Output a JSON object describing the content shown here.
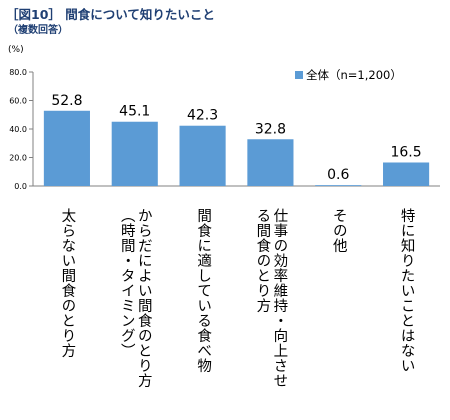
{
  "header": {
    "title": "［図10］ 間食について知りたいこと",
    "subtitle": "（複数回答）"
  },
  "colors": {
    "bar": "#5b9bd5",
    "axis": "#808080",
    "title": "#1f3f73"
  },
  "chart_data": {
    "type": "bar",
    "unit_label": "(%)",
    "categories": [
      "太らない間食のとり方",
      "からだによい間食のとり方\n（時間・タイミング）",
      "間食に適している食べ物",
      "仕事の効率維持・向上させ\nる間食のとり方",
      "その他",
      "特に知りたいことはない"
    ],
    "series": [
      {
        "name": "全体（n=1,200）",
        "values": [
          52.8,
          45.1,
          42.3,
          32.8,
          0.6,
          16.5
        ]
      }
    ],
    "data_labels": [
      "52.8",
      "45.1",
      "42.3",
      "32.8",
      "0.6",
      "16.5"
    ],
    "y_ticks": [
      "0.0",
      "20.0",
      "40.0",
      "60.0",
      "80.0"
    ],
    "ylim": [
      0,
      80
    ],
    "legend_position": "top-right",
    "grid": false
  }
}
